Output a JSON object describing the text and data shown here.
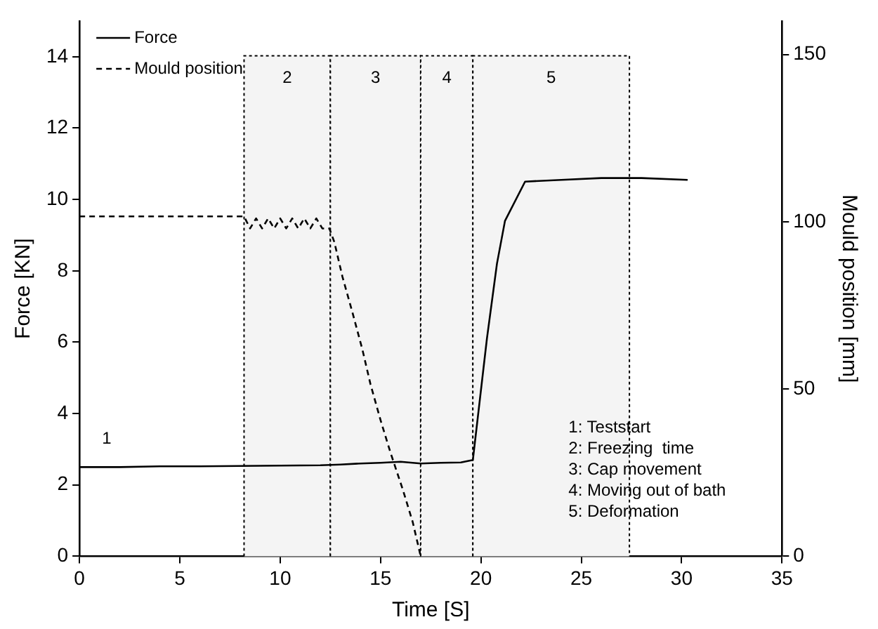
{
  "chart_data": {
    "type": "line",
    "xlabel": "Time [S]",
    "ylabel": "Force [KN]",
    "y2label": "Mould position [mm]",
    "xlim": [
      0,
      35
    ],
    "xticks": [
      0,
      5,
      10,
      15,
      20,
      25,
      30,
      35
    ],
    "ylim": [
      0,
      15
    ],
    "yticks": [
      0,
      2,
      4,
      6,
      8,
      10,
      12,
      14
    ],
    "y2lim": [
      0,
      160
    ],
    "y2ticks": [
      0,
      50,
      100,
      150
    ],
    "legend": "top left",
    "grid": false,
    "marker": "none",
    "series": [
      {
        "name": "Force",
        "color": "#000000",
        "line_style": "solid",
        "x": [
          0,
          2,
          4,
          6,
          8,
          10,
          12,
          13,
          14,
          15,
          16,
          17,
          18,
          19,
          19.6,
          20.3,
          20.8,
          21.2,
          22.2,
          24,
          26,
          28,
          30.3
        ],
        "values": [
          2.5,
          2.5,
          2.52,
          2.52,
          2.53,
          2.54,
          2.55,
          2.57,
          2.6,
          2.62,
          2.65,
          2.6,
          2.62,
          2.63,
          2.7,
          6.1,
          8.2,
          9.4,
          10.5,
          10.55,
          10.6,
          10.6,
          10.55
        ]
      },
      {
        "name": "Mould position",
        "color": "#000000",
        "line_style": "dashed",
        "axis": "y2",
        "x": [
          0,
          8.2,
          8.5,
          8.8,
          9.1,
          9.4,
          9.7,
          10.0,
          10.3,
          10.6,
          10.9,
          11.2,
          11.5,
          11.8,
          12.1,
          12.45,
          12.7,
          13.1,
          13.6,
          14.1,
          14.5,
          15.0,
          15.5,
          16.1,
          16.6,
          17.0
        ],
        "values": [
          101.6,
          101.6,
          98,
          101,
          98,
          101,
          98,
          101,
          98,
          101,
          98,
          101,
          98,
          101,
          98,
          98,
          93.9,
          83.6,
          72.9,
          61.7,
          51.4,
          40.7,
          30.9,
          20.1,
          10.3,
          0
        ]
      }
    ],
    "bands": [
      {
        "axis": "x",
        "from": 8.2,
        "to": 12.5,
        "label": "2",
        "color": "#f4f4f4"
      },
      {
        "axis": "x",
        "from": 12.5,
        "to": 17.0,
        "label": "3",
        "color": "#f4f4f4"
      },
      {
        "axis": "x",
        "from": 17.0,
        "to": 19.6,
        "label": "4",
        "color": "#f4f4f4"
      },
      {
        "axis": "x",
        "from": 19.6,
        "to": 27.4,
        "label": "5",
        "color": "#f4f4f4"
      }
    ],
    "annotations": [
      "1",
      "1: Teststart",
      "2: Freezing  time",
      "3: Cap movement",
      "4: Moving out of bath",
      "5: Deformation"
    ]
  }
}
